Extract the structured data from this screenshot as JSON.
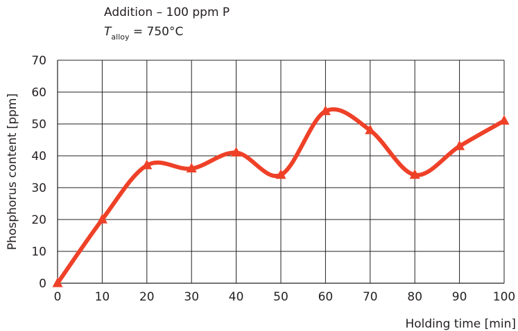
{
  "chart_data": {
    "type": "line",
    "annotations": {
      "line1": "Addition – 100 ppm P",
      "line2_symbol": "T",
      "line2_subscript": "alloy",
      "line2_value": " = 750°C"
    },
    "xlabel": "Holding time [min]",
    "ylabel": "Phosphorus content [ppm]",
    "xlim": [
      0,
      100
    ],
    "ylim": [
      0,
      70
    ],
    "xticks": [
      0,
      10,
      20,
      30,
      40,
      50,
      60,
      70,
      80,
      90,
      100
    ],
    "yticks": [
      0,
      10,
      20,
      30,
      40,
      50,
      60,
      70
    ],
    "grid": true,
    "x": [
      0,
      10,
      20,
      30,
      40,
      50,
      60,
      70,
      80,
      90,
      100
    ],
    "series": [
      {
        "values": [
          0,
          20,
          37,
          36,
          41,
          34,
          54,
          48,
          34,
          43,
          51
        ],
        "color": "#ee4128",
        "marker": "triangle",
        "smooth": true
      }
    ]
  }
}
